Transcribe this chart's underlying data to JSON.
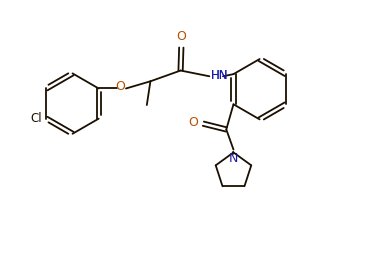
{
  "bg_color": "#ffffff",
  "line_color": "#1a0f00",
  "atom_colors": {
    "O": "#b85000",
    "N": "#1a1aaa",
    "Cl": "#1a0f00"
  },
  "figsize": [
    3.75,
    2.79
  ],
  "dpi": 100,
  "lw": 1.3,
  "ring_r": 0.42
}
